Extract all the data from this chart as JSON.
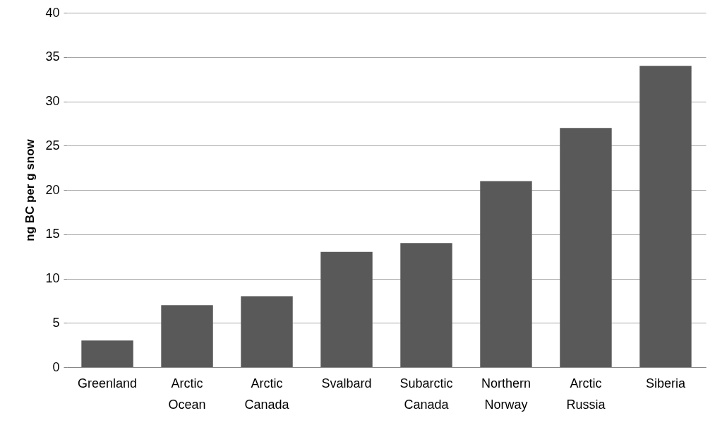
{
  "chart_data": {
    "type": "bar",
    "ylabel": "ng BC per g snow",
    "categories": [
      "Greenland",
      "Arctic Ocean",
      "Arctic Canada",
      "Svalbard",
      "Subarctic Canada",
      "Northern Norway",
      "Arctic Russia",
      "Siberia"
    ],
    "values": [
      3,
      7,
      8,
      13,
      14,
      21,
      27,
      34
    ],
    "color": "#595959",
    "ylim": [
      0,
      40
    ],
    "yticks": [
      0,
      5,
      10,
      15,
      20,
      25,
      30,
      35,
      40
    ],
    "grid": "y"
  }
}
